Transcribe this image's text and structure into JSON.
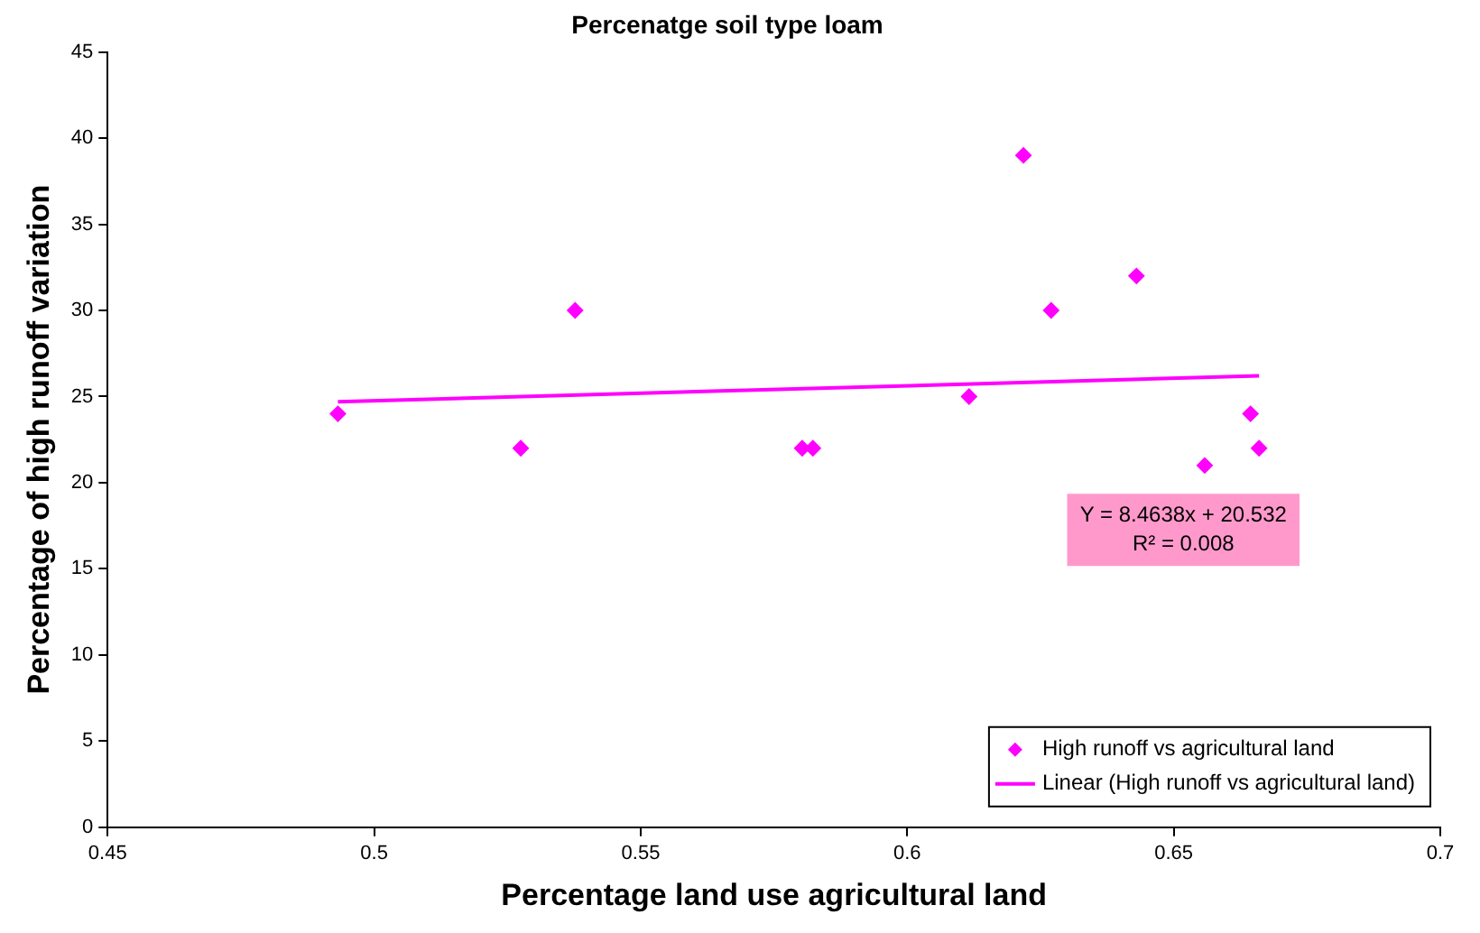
{
  "chart_data": {
    "type": "scatter",
    "title": "Percenatge soil type loam",
    "xlabel": "Percentage land use agricultural land",
    "ylabel": "Percentage of high runoff variation",
    "series": [
      {
        "name": "High runoff vs agricultural land",
        "color": "#ff00ff",
        "type": "scatter",
        "marker": "diamond",
        "x": [
          0.4932,
          0.5275,
          0.5377,
          0.5803,
          0.5823,
          0.6116,
          0.6218,
          0.627,
          0.643,
          0.6558,
          0.6644,
          0.666
        ],
        "values": [
          24,
          22,
          30,
          22,
          22,
          25,
          39,
          30,
          32,
          21,
          24,
          22
        ]
      },
      {
        "name": "Linear (High runoff vs agricultural land)",
        "color": "#ff00ff",
        "type": "line",
        "marker": "none",
        "x": [
          0.4932,
          0.666
        ],
        "values": [
          24.7,
          26.2
        ]
      }
    ],
    "annotations": [
      "Y = 8.4638x + 20.532",
      "R² = 0.008"
    ],
    "xlim": [
      0.45,
      0.7
    ],
    "xticks": [
      0.45,
      0.5,
      0.55,
      0.6,
      0.65,
      0.7
    ],
    "ylim": [
      0,
      45
    ],
    "yticks": [
      0,
      5,
      10,
      15,
      20,
      25,
      30,
      35,
      40,
      45
    ],
    "grid": false,
    "legend": "bottom right"
  }
}
